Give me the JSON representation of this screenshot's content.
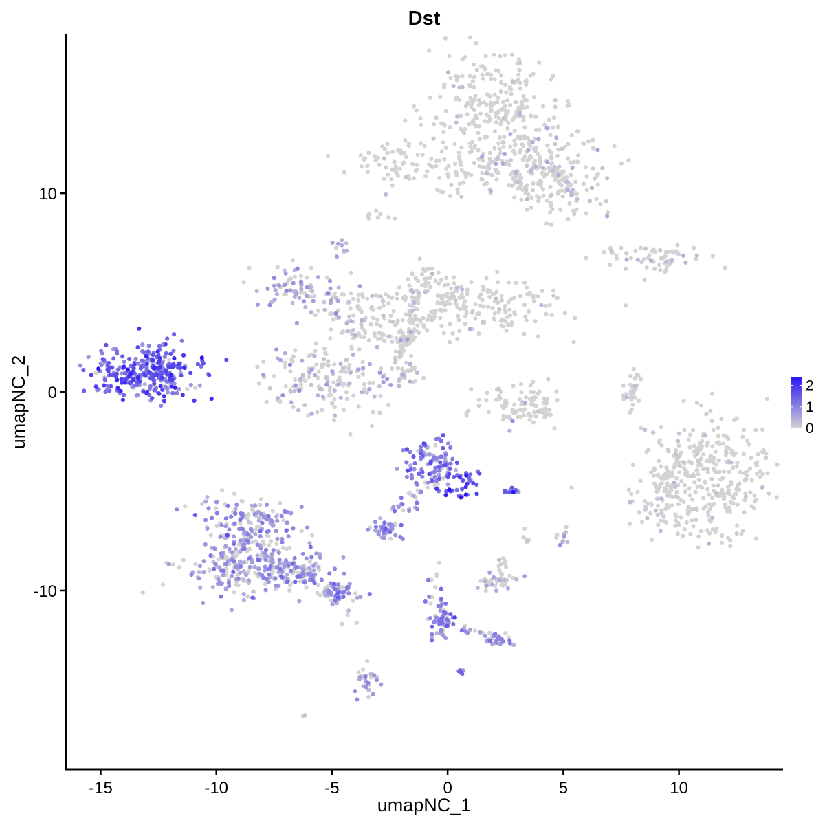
{
  "chart_data": {
    "type": "scatter",
    "title": "Dst",
    "xlabel": "umapNC_1",
    "ylabel": "umapNC_2",
    "xlim": [
      -16.5,
      14.5
    ],
    "ylim": [
      -19,
      18
    ],
    "xticks": [
      -15,
      -10,
      -5,
      0,
      5,
      10
    ],
    "yticks": [
      -10,
      0,
      10
    ],
    "grid": false,
    "colors": {
      "low": "#d3d3d3",
      "high": "#2a17f5"
    },
    "legend": {
      "position": "right",
      "values": [
        2,
        1,
        0
      ],
      "range": [
        0,
        2.4
      ]
    },
    "clusters": [
      {
        "cx": 1.8,
        "cy": 14.2,
        "sx": 1.4,
        "sy": 1.5,
        "n": 260,
        "expr": 0.05
      },
      {
        "cx": 3.9,
        "cy": 11.6,
        "sx": 1.5,
        "sy": 0.9,
        "n": 130,
        "expr": 0.25
      },
      {
        "cx": 5.0,
        "cy": 9.8,
        "sx": 0.9,
        "sy": 0.8,
        "n": 70,
        "expr": 0.2
      },
      {
        "cx": 0.8,
        "cy": 11.3,
        "sx": 1.6,
        "sy": 0.6,
        "n": 70,
        "expr": 0.05
      },
      {
        "cx": -2.3,
        "cy": 11.6,
        "sx": 1.1,
        "sy": 0.5,
        "n": 55,
        "expr": 0.02
      },
      {
        "cx": -3.0,
        "cy": 8.8,
        "sx": 0.25,
        "sy": 0.15,
        "n": 8,
        "expr": 0.0
      },
      {
        "cx": -4.6,
        "cy": 7.3,
        "sx": 0.2,
        "sy": 0.25,
        "n": 10,
        "expr": 0.5
      },
      {
        "cx": 8.6,
        "cy": 6.9,
        "sx": 1.2,
        "sy": 0.3,
        "n": 55,
        "expr": 0.2
      },
      {
        "cx": 9.1,
        "cy": 6.2,
        "sx": 0.5,
        "sy": 0.3,
        "n": 8,
        "expr": 0.0
      },
      {
        "cx": -6.5,
        "cy": 5.3,
        "sx": 1.0,
        "sy": 0.6,
        "n": 70,
        "expr": 0.6
      },
      {
        "cx": -4.0,
        "cy": 4.2,
        "sx": 1.0,
        "sy": 0.6,
        "n": 55,
        "expr": 0.25
      },
      {
        "cx": -1.6,
        "cy": 3.5,
        "sx": 1.3,
        "sy": 0.7,
        "n": 70,
        "expr": 0.05
      },
      {
        "cx": 1.6,
        "cy": 4.3,
        "sx": 1.7,
        "sy": 0.7,
        "n": 140,
        "expr": 0.02
      },
      {
        "cx": -0.9,
        "cy": 5.6,
        "sx": 0.6,
        "sy": 0.5,
        "n": 40,
        "expr": 0.02
      },
      {
        "cx": -5.1,
        "cy": 0.6,
        "sx": 1.4,
        "sy": 0.9,
        "n": 170,
        "expr": 0.45
      },
      {
        "cx": -2.0,
        "cy": 1.0,
        "sx": 0.5,
        "sy": 0.4,
        "n": 20,
        "expr": 0.25
      },
      {
        "cx": -13.2,
        "cy": 0.9,
        "sx": 1.1,
        "sy": 0.6,
        "n": 260,
        "expr": 1.4
      },
      {
        "cx": -12.1,
        "cy": 1.5,
        "sx": 0.6,
        "sy": 0.6,
        "n": 40,
        "expr": 1.3
      },
      {
        "cx": 3.3,
        "cy": -0.6,
        "sx": 0.9,
        "sy": 0.5,
        "n": 80,
        "expr": 0.02
      },
      {
        "cx": 8.0,
        "cy": 0.1,
        "sx": 0.25,
        "sy": 0.6,
        "n": 22,
        "expr": 0.1
      },
      {
        "cx": 11.3,
        "cy": -4.0,
        "sx": 1.3,
        "sy": 1.5,
        "n": 340,
        "expr": 0.05
      },
      {
        "cx": 9.2,
        "cy": -5.6,
        "sx": 0.8,
        "sy": 1.0,
        "n": 60,
        "expr": 0.05
      },
      {
        "cx": -0.7,
        "cy": -3.6,
        "sx": 0.6,
        "sy": 0.6,
        "n": 110,
        "expr": 1.1
      },
      {
        "cx": 0.6,
        "cy": -4.8,
        "sx": 0.35,
        "sy": 0.4,
        "n": 30,
        "expr": 1.6
      },
      {
        "cx": -2.6,
        "cy": -6.9,
        "sx": 0.35,
        "sy": 0.25,
        "n": 40,
        "expr": 0.9
      },
      {
        "cx": -1.5,
        "cy": -5.6,
        "sx": 0.5,
        "sy": 0.3,
        "n": 12,
        "expr": 0.7
      },
      {
        "cx": 2.8,
        "cy": -5.0,
        "sx": 0.2,
        "sy": 0.1,
        "n": 10,
        "expr": 1.3
      },
      {
        "cx": -8.7,
        "cy": -6.8,
        "sx": 1.0,
        "sy": 1.0,
        "n": 180,
        "expr": 0.8
      },
      {
        "cx": -9.1,
        "cy": -8.9,
        "sx": 1.2,
        "sy": 0.7,
        "n": 180,
        "expr": 0.7
      },
      {
        "cx": -6.5,
        "cy": -9.0,
        "sx": 0.9,
        "sy": 0.5,
        "n": 80,
        "expr": 0.8
      },
      {
        "cx": -4.6,
        "cy": -10.1,
        "sx": 0.5,
        "sy": 0.3,
        "n": 50,
        "expr": 0.9
      },
      {
        "cx": 2.1,
        "cy": -9.5,
        "sx": 0.5,
        "sy": 0.25,
        "n": 40,
        "expr": 0.45
      },
      {
        "cx": 2.4,
        "cy": -8.6,
        "sx": 0.2,
        "sy": 0.15,
        "n": 8,
        "expr": 0.3
      },
      {
        "cx": 3.4,
        "cy": -7.4,
        "sx": 0.15,
        "sy": 0.2,
        "n": 8,
        "expr": 0.1
      },
      {
        "cx": 5.0,
        "cy": -7.3,
        "sx": 0.15,
        "sy": 0.25,
        "n": 12,
        "expr": 0.45
      },
      {
        "cx": -0.2,
        "cy": -11.7,
        "sx": 0.35,
        "sy": 0.4,
        "n": 40,
        "expr": 1.0
      },
      {
        "cx": -0.6,
        "cy": -10.0,
        "sx": 0.2,
        "sy": 0.5,
        "n": 12,
        "expr": 0.9
      },
      {
        "cx": 2.3,
        "cy": -12.5,
        "sx": 0.3,
        "sy": 0.15,
        "n": 25,
        "expr": 0.9
      },
      {
        "cx": 0.6,
        "cy": -14.1,
        "sx": 0.1,
        "sy": 0.08,
        "n": 5,
        "expr": 1.2
      },
      {
        "cx": -3.5,
        "cy": -14.6,
        "sx": 0.25,
        "sy": 0.5,
        "n": 30,
        "expr": 0.6
      },
      {
        "cx": -6.2,
        "cy": -16.3,
        "sx": 0.1,
        "sy": 0.05,
        "n": 3,
        "expr": 0.4
      },
      {
        "cx": -4.1,
        "cy": -11.4,
        "sx": 0.2,
        "sy": 0.1,
        "n": 3,
        "expr": 0.0
      }
    ],
    "bridges": [
      {
        "from": [
          -2.0,
          2.5
        ],
        "to": [
          0.6,
          5.4
        ],
        "n": 45,
        "expr": 0.1
      },
      {
        "from": [
          -4.6,
          3.0
        ],
        "to": [
          -1.6,
          2.6
        ],
        "n": 30,
        "expr": 0.2
      },
      {
        "from": [
          -2.2,
          1.6
        ],
        "to": [
          -1.4,
          3.2
        ],
        "n": 20,
        "expr": 0.15
      },
      {
        "from": [
          -2.2,
          1.6
        ],
        "to": [
          -1.3,
          0.8
        ],
        "n": 14,
        "expr": 0.3
      },
      {
        "from": [
          -1.9,
          2.3
        ],
        "to": [
          -1.3,
          4.9
        ],
        "n": 16,
        "expr": 0.05
      },
      {
        "from": [
          -2.5,
          -6.1
        ],
        "to": [
          -1.2,
          -5.0
        ],
        "n": 12,
        "expr": 0.9
      },
      {
        "from": [
          -0.3,
          -10.4
        ],
        "to": [
          -0.1,
          -11.8
        ],
        "n": 18,
        "expr": 1.0
      },
      {
        "from": [
          0.5,
          -11.9
        ],
        "to": [
          2.3,
          -12.4
        ],
        "n": 18,
        "expr": 0.8
      },
      {
        "from": [
          -7.2,
          -8.6
        ],
        "to": [
          -4.3,
          -10.2
        ],
        "n": 45,
        "expr": 0.7
      },
      {
        "from": [
          4.3,
          11.5
        ],
        "to": [
          5.5,
          10.0
        ],
        "n": 25,
        "expr": 0.15
      },
      {
        "from": [
          2.8,
          11.0
        ],
        "to": [
          3.6,
          10.0
        ],
        "n": 18,
        "expr": 0.3
      },
      {
        "from": [
          8.2,
          0.8
        ],
        "to": [
          7.9,
          -0.7
        ],
        "n": 10,
        "expr": 0.1
      },
      {
        "from": [
          2.4,
          -1.3
        ],
        "to": [
          4.2,
          -1.0
        ],
        "n": 20,
        "expr": 0.02
      }
    ]
  }
}
